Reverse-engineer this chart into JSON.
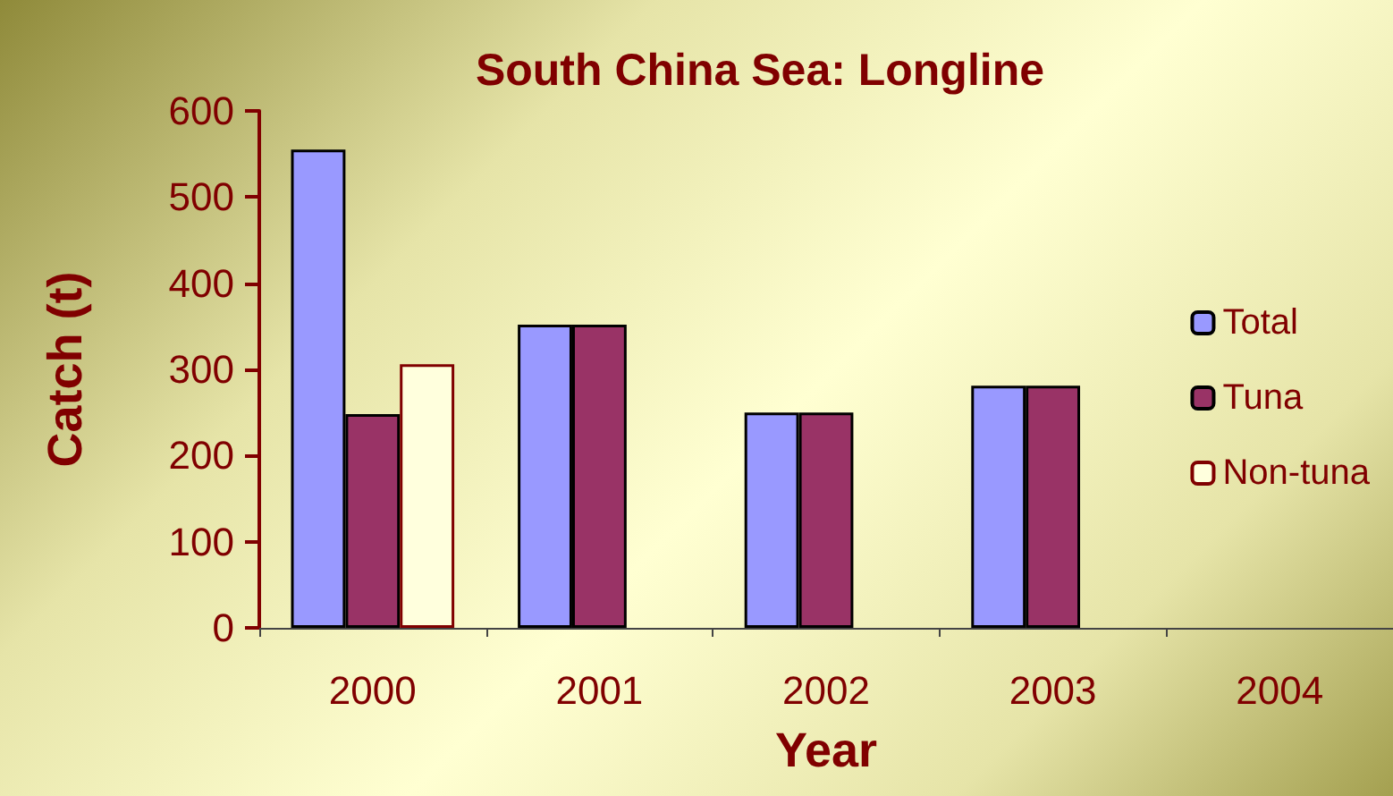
{
  "chart_data": {
    "type": "bar",
    "title": "South China Sea: Longline",
    "xlabel": "Year",
    "ylabel": "Catch (t)",
    "categories": [
      "2000",
      "2001",
      "2002",
      "2003",
      "2004"
    ],
    "series": [
      {
        "name": "Total",
        "color": "#9999ff",
        "values": [
          555,
          352,
          250,
          281,
          null
        ]
      },
      {
        "name": "Tuna",
        "color": "#993366",
        "values": [
          248,
          352,
          250,
          281,
          null
        ]
      },
      {
        "name": "Non-tuna",
        "color": "#ffffdd",
        "values": [
          306,
          null,
          null,
          null,
          null
        ]
      }
    ],
    "ylim": [
      0,
      600
    ],
    "yticks": [
      0,
      100,
      200,
      300,
      400,
      500,
      600
    ],
    "grid": false,
    "legend": "right"
  }
}
